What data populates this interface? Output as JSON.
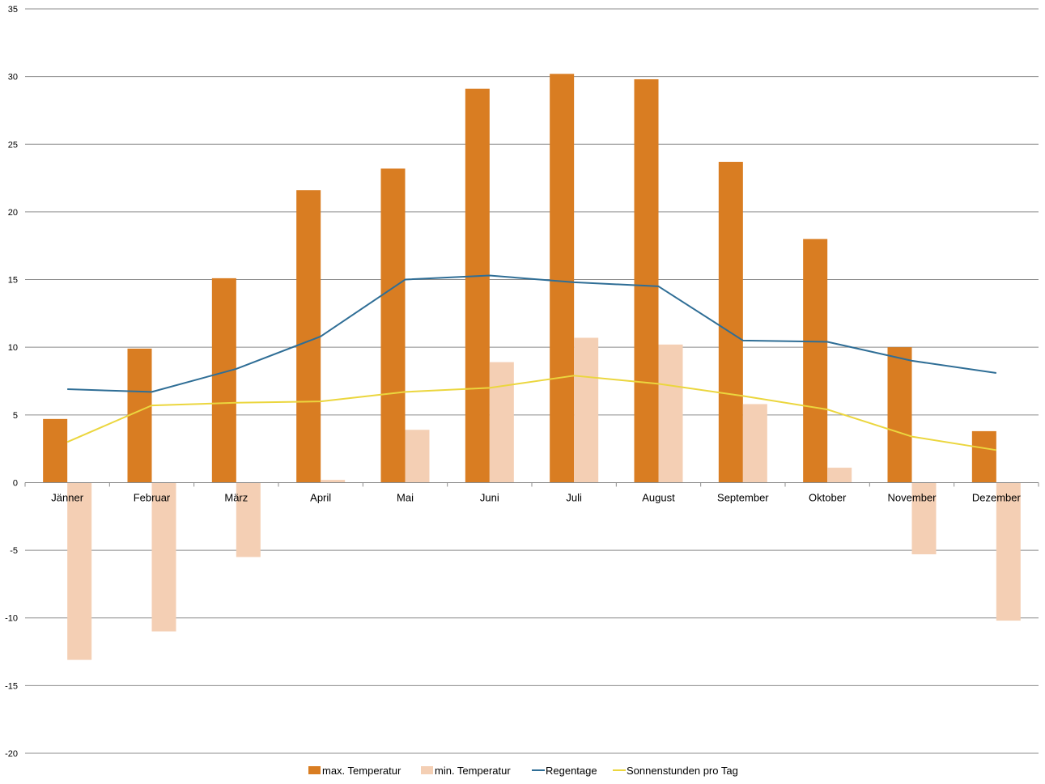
{
  "chart_data": {
    "type": "bar",
    "categories": [
      "Jänner",
      "Februar",
      "März",
      "April",
      "Mai",
      "Juni",
      "Juli",
      "August",
      "September",
      "Oktober",
      "November",
      "Dezember"
    ],
    "series": [
      {
        "name": "max. Temperatur",
        "kind": "bar",
        "color": "#D97D22",
        "values": [
          4.7,
          9.9,
          15.1,
          21.6,
          23.2,
          29.1,
          30.2,
          29.8,
          23.7,
          18.0,
          10.0,
          3.8
        ]
      },
      {
        "name": "min. Temperatur",
        "kind": "bar",
        "color": "#F4CFB4",
        "values": [
          -13.1,
          -11.0,
          -5.5,
          0.2,
          3.9,
          8.9,
          10.7,
          10.2,
          5.8,
          1.1,
          -5.3,
          -10.2
        ]
      },
      {
        "name": "Regentage",
        "kind": "line",
        "color": "#2F6E96",
        "values": [
          6.9,
          6.7,
          8.4,
          10.8,
          15.0,
          15.3,
          14.8,
          14.5,
          10.5,
          10.4,
          9.0,
          8.1
        ]
      },
      {
        "name": "Sonnenstunden pro Tag",
        "kind": "line",
        "color": "#EBD63E",
        "values": [
          3.0,
          5.7,
          5.9,
          6.0,
          6.7,
          7.0,
          7.9,
          7.3,
          6.4,
          5.4,
          3.4,
          2.4
        ]
      }
    ],
    "yticks": [
      "-20",
      "-15",
      "-10",
      "-5",
      "0",
      "5",
      "10",
      "15",
      "20",
      "25",
      "30",
      "35"
    ],
    "ylim": [
      -20,
      35
    ],
    "grid": true,
    "legend_position": "bottom"
  }
}
